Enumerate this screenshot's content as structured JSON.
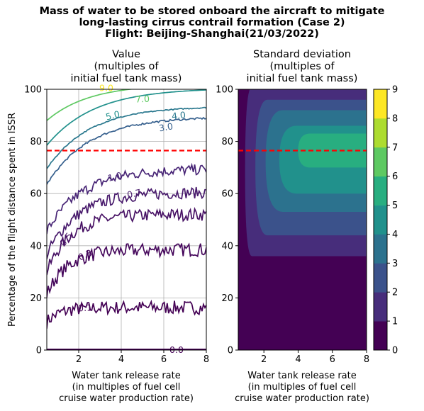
{
  "figure": {
    "title_lines": [
      "Mass of water to be stored onboard the aircraft to mitigate",
      "long-lasting cirrus contrail formation (Case 2)",
      "Flight: Beijing-Shanghai(21/03/2022)"
    ]
  },
  "chart_data": [
    {
      "type": "contour",
      "title_lines": [
        "Value",
        "(multiples of",
        "initial fuel tank mass)"
      ],
      "xlabel_lines": [
        "Water tank release rate",
        "(in multiples of fuel cell",
        "cruise water production rate)"
      ],
      "ylabel": "Percentage of the flight distance spent in ISSR",
      "xlim": [
        0.5,
        8
      ],
      "ylim": [
        0,
        100
      ],
      "xticks": [
        2,
        4,
        6,
        8
      ],
      "yticks": [
        0,
        20,
        40,
        60,
        80,
        100
      ],
      "grid": true,
      "contour_levels": [
        {
          "level": "0.0",
          "color": "#440154",
          "label": "0.0"
        },
        {
          "level": "0.1",
          "color": "#440154",
          "label": "0.1"
        },
        {
          "level": "0.3",
          "color": "#46085c",
          "label": "0.3"
        },
        {
          "level": "0.5",
          "color": "#471164",
          "label": "0.5"
        },
        {
          "level": "0.7",
          "color": "#481a6c",
          "label": "0.7"
        },
        {
          "level": "1.0",
          "color": "#482576",
          "label": "1.0"
        },
        {
          "level": "3.0",
          "color": "#355f8d",
          "label": "3.0"
        },
        {
          "level": "4.0",
          "color": "#2a788e",
          "label": "4.0"
        },
        {
          "level": "5.0",
          "color": "#21918c",
          "label": "5.0"
        },
        {
          "level": "7.0",
          "color": "#5ec962",
          "label": "7.0"
        },
        {
          "level": "9.0",
          "color": "#fde725",
          "label": "9.0"
        }
      ],
      "reference_line": {
        "y": 76.5,
        "color": "#ff0000",
        "style": "dashed"
      }
    },
    {
      "type": "filled-contour",
      "title_lines": [
        "Standard deviation",
        "(multiples of",
        "initial fuel tank mass)"
      ],
      "xlabel_lines": [
        "Water tank release rate",
        "(in multiples of fuel cell",
        "cruise water production rate)"
      ],
      "xlim": [
        0.5,
        8
      ],
      "ylim": [
        0,
        100
      ],
      "xticks": [
        2,
        4,
        6,
        8
      ],
      "yticks": [
        0,
        20,
        40,
        60,
        80,
        100
      ],
      "grid": false,
      "colorbar": {
        "ticks": [
          "0",
          "1",
          "2",
          "3",
          "4",
          "5",
          "6",
          "7",
          "8",
          "9"
        ],
        "colors": [
          "#440154",
          "#472d7b",
          "#3b528b",
          "#2c728e",
          "#21918c",
          "#28ae80",
          "#5ec962",
          "#addc30",
          "#fde725"
        ]
      },
      "reference_line": {
        "y": 76.5,
        "color": "#ff0000",
        "style": "dashed"
      }
    }
  ]
}
